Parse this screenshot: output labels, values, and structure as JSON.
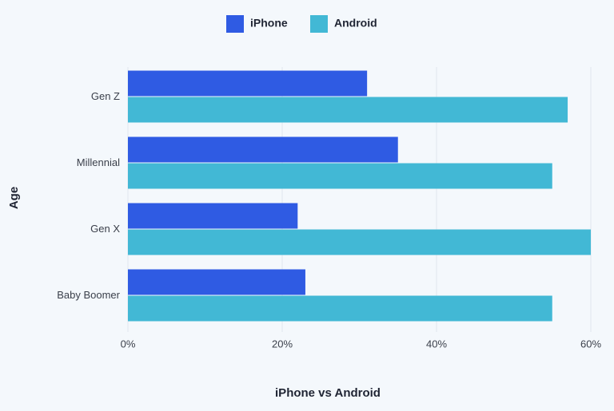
{
  "chart_data": {
    "type": "hbar",
    "xlabel": "iPhone vs Android",
    "ylabel": "Age",
    "categories": [
      "Gen Z",
      "Millennial",
      "Gen X",
      "Baby Boomer"
    ],
    "series": [
      {
        "name": "iPhone",
        "color": "#2f5be3",
        "values": [
          31,
          35,
          22,
          23
        ]
      },
      {
        "name": "Android",
        "color": "#42b8d5",
        "values": [
          57,
          55,
          60,
          55
        ]
      }
    ],
    "xlim": [
      0,
      60
    ],
    "xticks": [
      {
        "value": 0,
        "label": "0%"
      },
      {
        "value": 20,
        "label": "20%"
      },
      {
        "value": 40,
        "label": "40%"
      },
      {
        "value": 60,
        "label": "60%"
      }
    ],
    "grid": true,
    "legend": "top"
  }
}
